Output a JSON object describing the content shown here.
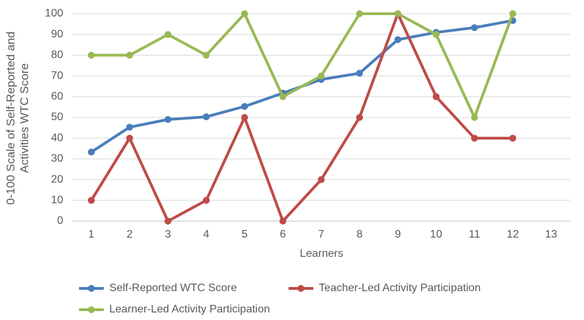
{
  "chart_data": {
    "type": "line",
    "y_label": "0-100 Scale of Self-Reported and Activities WTC Score",
    "x_label": "Learners",
    "categories": [
      "1",
      "2",
      "3",
      "4",
      "5",
      "6",
      "7",
      "8",
      "9",
      "10",
      "11",
      "12",
      "13"
    ],
    "series": [
      {
        "name": "Self-Reported WTC Score",
        "color": "#4a7ebb",
        "values": [
          33.3,
          45.3,
          49,
          50.3,
          55.3,
          61.7,
          68.3,
          71.3,
          87.5,
          91,
          93.3,
          96.7,
          null
        ]
      },
      {
        "name": "Teacher-Led Activity Participation",
        "color": "#be4b48",
        "values": [
          10,
          40,
          0,
          10,
          50,
          0,
          20,
          50,
          100,
          60,
          40,
          40,
          null
        ]
      },
      {
        "name": "Learner-Led Activity Participation",
        "color": "#98b954",
        "values": [
          80,
          80,
          90,
          80,
          100,
          60,
          70,
          100,
          100,
          90,
          50,
          100,
          null
        ]
      }
    ],
    "ylim": [
      0,
      100
    ],
    "yticks": [
      0,
      10,
      20,
      30,
      40,
      50,
      60,
      70,
      80,
      90,
      100
    ],
    "grid": true,
    "legend": "bottom"
  }
}
